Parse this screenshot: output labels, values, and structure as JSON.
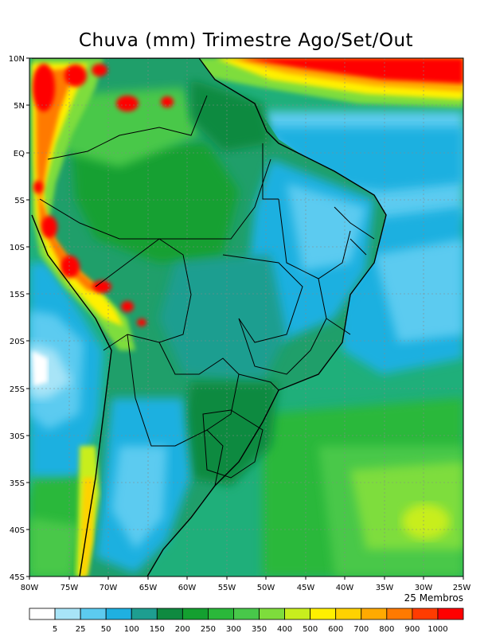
{
  "title": "Chuva (mm) Trimestre Ago/Set/Out",
  "members_label": "25 Membros",
  "lat_labels": [
    "10N",
    "5N",
    "EQ",
    "5S",
    "10S",
    "15S",
    "20S",
    "25S",
    "30S",
    "35S",
    "40S",
    "45S"
  ],
  "lon_labels": [
    "80W",
    "75W",
    "70W",
    "65W",
    "60W",
    "55W",
    "50W",
    "45W",
    "40W",
    "35W",
    "30W",
    "25W"
  ],
  "legend": {
    "labels": [
      "5",
      "25",
      "50",
      "100",
      "150",
      "200",
      "250",
      "300",
      "350",
      "400",
      "500",
      "600",
      "700",
      "800",
      "900",
      "1000"
    ],
    "colors": [
      "#ffffff",
      "#a8e4f7",
      "#5ccbf0",
      "#1fb0e0",
      "#1e9e90",
      "#0f8a40",
      "#14a030",
      "#2ab83a",
      "#48c84a",
      "#7edd3c",
      "#c8ee1e",
      "#fff000",
      "#ffd200",
      "#ffaa00",
      "#ff7a00",
      "#ff3c00",
      "#ff0000"
    ]
  },
  "colors": {
    "ocean_lowlat": "#22b58a",
    "ocean_north_max": "#ff0000",
    "land_base": "#1f9f6a",
    "andes_max": "#ff0000",
    "borders": "#000000"
  }
}
